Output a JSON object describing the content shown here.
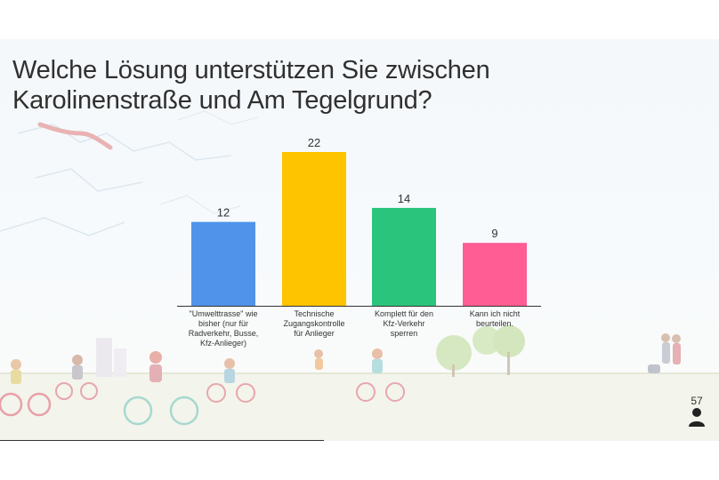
{
  "slide": {
    "title_line1": "Welche Lösung unterstützen Sie zwischen",
    "title_line2": "Karolinenstraße und Am Tegelgrund?",
    "respondent_count": "57",
    "respondent_icon": "person-icon"
  },
  "chart_data": {
    "type": "bar",
    "title": "Welche Lösung unterstützen Sie zwischen Karolinenstraße und Am Tegelgrund?",
    "categories": [
      "\"Umwelttrasse\" wie bisher (nur für Radverkehr, Busse, Kfz-Anlieger)",
      "Technische Zugangskontrolle für Anlieger",
      "Komplett für den Kfz-Verkehr sperren",
      "Kann ich nicht beurteilen."
    ],
    "category_lines": [
      [
        "\"Umwelttrasse\" wie",
        "bisher (nur für",
        "Radverkehr, Busse,",
        "Kfz-Anlieger)"
      ],
      [
        "Technische",
        "Zugangskontrolle",
        "für Anlieger"
      ],
      [
        "Komplett für den",
        "Kfz-Verkehr",
        "sperren"
      ],
      [
        "Kann ich nicht",
        "beurteilen."
      ]
    ],
    "values": [
      12,
      22,
      14,
      9
    ],
    "value_labels": [
      "12",
      "22",
      "14",
      "9"
    ],
    "colors": [
      "#4f94ea",
      "#ffc400",
      "#2bc47c",
      "#ff5d93"
    ],
    "ylim": [
      0,
      22
    ],
    "grid": false,
    "legend": "none"
  }
}
